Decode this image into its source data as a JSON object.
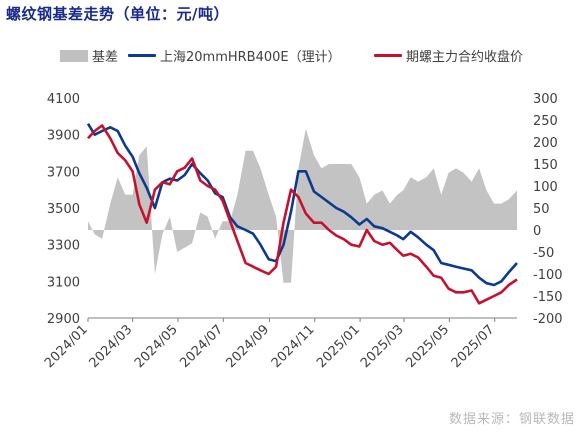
{
  "title": "螺纹钢基差走势（单位：元/吨）",
  "source": "数据来源：钢联数据",
  "legend": [
    {
      "label": "基差",
      "color": "#c0c0c0",
      "kind": "box"
    },
    {
      "label": "上海20mmHRB400E（理计）",
      "color": "#0b3a8f",
      "kind": "line"
    },
    {
      "label": "期螺主力合约收盘价",
      "color": "#c8102e",
      "kind": "line"
    }
  ],
  "chart_data": {
    "type": "line",
    "x_ticks": [
      "2024/01",
      "2024/03",
      "2024/05",
      "2024/07",
      "2024/09",
      "2024/11",
      "2025/01",
      "2025/03",
      "2025/05",
      "2025/07"
    ],
    "left_axis": {
      "ticks": [
        2900,
        3100,
        3300,
        3500,
        3700,
        3900,
        4100
      ],
      "ylim": [
        2900,
        4100
      ]
    },
    "right_axis": {
      "ticks": [
        -200,
        -150,
        -100,
        -50,
        0,
        50,
        100,
        150,
        200,
        250,
        300
      ],
      "ylim": [
        -200,
        300
      ]
    },
    "grid": false,
    "series": [
      {
        "name": "上海20mmHRB400E（理计）",
        "axis": "left",
        "color": "#0b3a8f",
        "x": [
          "2024-01-01",
          "2024-01-10",
          "2024-01-20",
          "2024-01-31",
          "2024-02-10",
          "2024-02-20",
          "2024-03-01",
          "2024-03-10",
          "2024-03-20",
          "2024-03-31",
          "2024-04-10",
          "2024-04-20",
          "2024-04-30",
          "2024-05-10",
          "2024-05-20",
          "2024-05-31",
          "2024-06-10",
          "2024-06-20",
          "2024-06-30",
          "2024-07-10",
          "2024-07-20",
          "2024-07-31",
          "2024-08-10",
          "2024-08-20",
          "2024-08-31",
          "2024-09-10",
          "2024-09-20",
          "2024-09-30",
          "2024-10-10",
          "2024-10-20",
          "2024-10-31",
          "2024-11-10",
          "2024-11-20",
          "2024-11-30",
          "2024-12-10",
          "2024-12-20",
          "2024-12-31",
          "2025-01-10",
          "2025-01-20",
          "2025-01-31",
          "2025-02-10",
          "2025-02-20",
          "2025-02-28",
          "2025-03-10",
          "2025-03-20",
          "2025-03-31",
          "2025-04-10",
          "2025-04-20",
          "2025-04-30",
          "2025-05-10",
          "2025-05-20",
          "2025-05-31",
          "2025-06-10",
          "2025-06-20",
          "2025-06-30",
          "2025-07-10",
          "2025-07-20",
          "2025-07-31"
        ],
        "y": [
          3960,
          3900,
          3920,
          3940,
          3920,
          3840,
          3780,
          3690,
          3610,
          3500,
          3640,
          3660,
          3650,
          3680,
          3740,
          3690,
          3650,
          3580,
          3560,
          3450,
          3400,
          3380,
          3360,
          3300,
          3220,
          3210,
          3300,
          3480,
          3700,
          3700,
          3590,
          3560,
          3530,
          3500,
          3480,
          3450,
          3410,
          3440,
          3400,
          3390,
          3370,
          3350,
          3330,
          3370,
          3340,
          3300,
          3270,
          3200,
          3190,
          3180,
          3170,
          3160,
          3120,
          3090,
          3080,
          3100,
          3150,
          3200
        ]
      },
      {
        "name": "期螺主力合约收盘价",
        "axis": "left",
        "color": "#c8102e",
        "x": [
          "2024-01-01",
          "2024-01-10",
          "2024-01-20",
          "2024-01-31",
          "2024-02-10",
          "2024-02-20",
          "2024-03-01",
          "2024-03-10",
          "2024-03-20",
          "2024-03-31",
          "2024-04-10",
          "2024-04-20",
          "2024-04-30",
          "2024-05-10",
          "2024-05-20",
          "2024-05-31",
          "2024-06-10",
          "2024-06-20",
          "2024-06-30",
          "2024-07-10",
          "2024-07-20",
          "2024-07-31",
          "2024-08-10",
          "2024-08-20",
          "2024-08-31",
          "2024-09-10",
          "2024-09-20",
          "2024-09-30",
          "2024-10-10",
          "2024-10-20",
          "2024-10-31",
          "2024-11-10",
          "2024-11-20",
          "2024-11-30",
          "2024-12-10",
          "2024-12-20",
          "2024-12-31",
          "2025-01-10",
          "2025-01-20",
          "2025-01-31",
          "2025-02-10",
          "2025-02-20",
          "2025-02-28",
          "2025-03-10",
          "2025-03-20",
          "2025-03-31",
          "2025-04-10",
          "2025-04-20",
          "2025-04-30",
          "2025-05-10",
          "2025-05-20",
          "2025-05-31",
          "2025-06-10",
          "2025-06-20",
          "2025-06-30",
          "2025-07-10",
          "2025-07-20",
          "2025-07-31"
        ],
        "y": [
          3880,
          3920,
          3950,
          3880,
          3800,
          3760,
          3700,
          3520,
          3420,
          3600,
          3640,
          3630,
          3700,
          3720,
          3770,
          3650,
          3620,
          3600,
          3540,
          3430,
          3320,
          3200,
          3180,
          3160,
          3140,
          3180,
          3420,
          3600,
          3560,
          3470,
          3420,
          3420,
          3380,
          3350,
          3330,
          3300,
          3290,
          3380,
          3320,
          3300,
          3310,
          3270,
          3240,
          3250,
          3230,
          3180,
          3130,
          3120,
          3060,
          3040,
          3040,
          3050,
          2980,
          3000,
          3020,
          3040,
          3080,
          3110
        ]
      },
      {
        "name": "基差",
        "axis": "right",
        "color": "#c0c0c0",
        "kind": "area",
        "x": [
          "2024-01-01",
          "2024-01-10",
          "2024-01-20",
          "2024-01-31",
          "2024-02-10",
          "2024-02-20",
          "2024-03-01",
          "2024-03-10",
          "2024-03-20",
          "2024-03-31",
          "2024-04-10",
          "2024-04-20",
          "2024-04-30",
          "2024-05-10",
          "2024-05-20",
          "2024-05-31",
          "2024-06-10",
          "2024-06-20",
          "2024-06-30",
          "2024-07-10",
          "2024-07-20",
          "2024-07-31",
          "2024-08-10",
          "2024-08-20",
          "2024-08-31",
          "2024-09-10",
          "2024-09-20",
          "2024-09-30",
          "2024-10-10",
          "2024-10-20",
          "2024-10-31",
          "2024-11-10",
          "2024-11-20",
          "2024-11-30",
          "2024-12-10",
          "2024-12-20",
          "2024-12-31",
          "2025-01-10",
          "2025-01-20",
          "2025-01-31",
          "2025-02-10",
          "2025-02-20",
          "2025-02-28",
          "2025-03-10",
          "2025-03-20",
          "2025-03-31",
          "2025-04-10",
          "2025-04-20",
          "2025-04-30",
          "2025-05-10",
          "2025-05-20",
          "2025-05-31",
          "2025-06-10",
          "2025-06-20",
          "2025-06-30",
          "2025-07-10",
          "2025-07-20",
          "2025-07-31"
        ],
        "y": [
          20,
          -10,
          -20,
          60,
          120,
          80,
          80,
          170,
          190,
          -100,
          -10,
          30,
          -50,
          -40,
          -30,
          40,
          30,
          -20,
          20,
          20,
          80,
          180,
          180,
          140,
          80,
          30,
          -120,
          -120,
          140,
          230,
          170,
          140,
          150,
          150,
          150,
          150,
          120,
          60,
          80,
          90,
          60,
          80,
          90,
          120,
          110,
          120,
          140,
          80,
          130,
          140,
          130,
          110,
          140,
          90,
          60,
          60,
          70,
          90
        ]
      }
    ]
  }
}
